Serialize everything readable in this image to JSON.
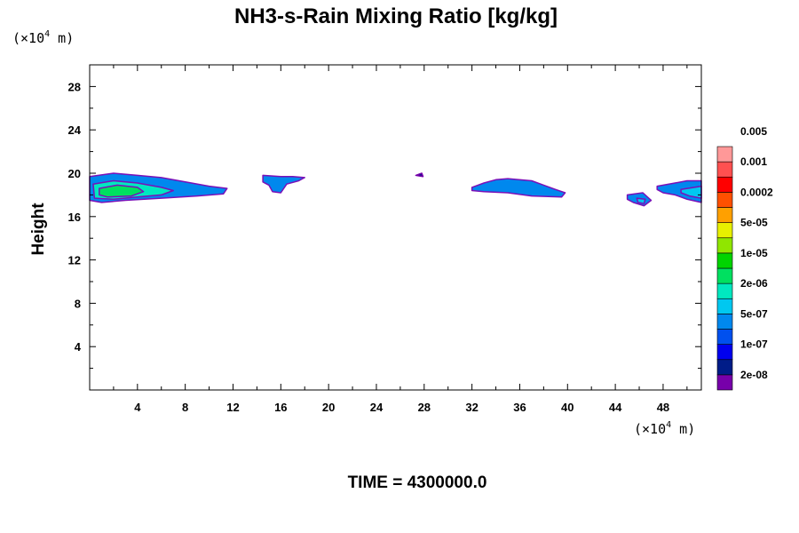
{
  "chart_data": {
    "type": "heatmap",
    "title": "NH3-s-Rain Mixing Ratio [kg/kg]",
    "ylabel": "Height",
    "y_unit": {
      "prefix": "(×10",
      "exp": "4",
      "suffix": " m)"
    },
    "x_unit": {
      "prefix": "(×10",
      "exp": "4",
      "suffix": " m)"
    },
    "xlim": [
      0,
      51.2
    ],
    "ylim": [
      0,
      30
    ],
    "xticks": [
      4,
      8,
      12,
      16,
      20,
      24,
      28,
      32,
      36,
      40,
      44,
      48
    ],
    "yticks": [
      4,
      8,
      12,
      16,
      20,
      24,
      28
    ],
    "time_label": "TIME = 4300000.0",
    "colorbar": {
      "colors": [
        "#7700aa",
        "#001c88",
        "#0000ee",
        "#0050ee",
        "#0088ee",
        "#00c8f0",
        "#00e8c0",
        "#00e060",
        "#00d400",
        "#90e600",
        "#e8f000",
        "#ffa000",
        "#ff5000",
        "#ff0000",
        "#ff5050",
        "#ff9898"
      ],
      "labels": [
        "2e-08",
        "1e-07",
        "5e-07",
        "2e-06",
        "1e-05",
        "5e-05",
        "0.0002",
        "0.001",
        "0.005"
      ]
    },
    "regions": [
      {
        "level": 4,
        "points": [
          [
            0,
            19.7
          ],
          [
            2,
            20.0
          ],
          [
            4,
            19.8
          ],
          [
            6,
            19.6
          ],
          [
            8,
            19.2
          ],
          [
            10,
            18.8
          ],
          [
            11.5,
            18.6
          ],
          [
            11.2,
            18.1
          ],
          [
            9,
            17.9
          ],
          [
            6,
            17.7
          ],
          [
            3,
            17.5
          ],
          [
            1,
            17.3
          ],
          [
            0,
            17.5
          ]
        ]
      },
      {
        "level": 6,
        "points": [
          [
            0.3,
            19.0
          ],
          [
            2,
            19.3
          ],
          [
            4,
            19.1
          ],
          [
            6,
            18.7
          ],
          [
            7,
            18.4
          ],
          [
            6,
            18.0
          ],
          [
            4,
            17.8
          ],
          [
            2,
            17.6
          ],
          [
            0.4,
            17.7
          ]
        ]
      },
      {
        "level": 7,
        "points": [
          [
            0.8,
            18.6
          ],
          [
            2.3,
            18.9
          ],
          [
            4,
            18.7
          ],
          [
            4.5,
            18.3
          ],
          [
            3.5,
            17.9
          ],
          [
            1.5,
            17.8
          ],
          [
            0.8,
            18.0
          ]
        ]
      },
      {
        "level": 4,
        "points": [
          [
            14.5,
            19.8
          ],
          [
            16,
            19.7
          ],
          [
            17,
            19.7
          ],
          [
            18,
            19.6
          ],
          [
            17.5,
            19.3
          ],
          [
            16.5,
            19.0
          ],
          [
            16,
            18.2
          ],
          [
            15.3,
            18.3
          ],
          [
            15,
            18.9
          ],
          [
            14.5,
            19.2
          ]
        ]
      },
      {
        "level": 1,
        "points": [
          [
            27.3,
            19.8
          ],
          [
            27.8,
            20.0
          ],
          [
            27.9,
            19.7
          ]
        ]
      },
      {
        "level": 4,
        "points": [
          [
            32,
            18.7
          ],
          [
            33,
            19.1
          ],
          [
            34,
            19.4
          ],
          [
            35,
            19.5
          ],
          [
            37,
            19.3
          ],
          [
            38,
            18.9
          ],
          [
            39,
            18.5
          ],
          [
            39.8,
            18.2
          ],
          [
            39.5,
            17.8
          ],
          [
            37,
            17.9
          ],
          [
            35,
            18.2
          ],
          [
            33,
            18.3
          ],
          [
            32,
            18.4
          ]
        ]
      },
      {
        "level": 4,
        "points": [
          [
            45,
            18.0
          ],
          [
            46.3,
            18.2
          ],
          [
            47,
            17.5
          ],
          [
            46.4,
            17.0
          ],
          [
            45.5,
            17.3
          ],
          [
            45,
            17.6
          ]
        ]
      },
      {
        "level": 5,
        "points": [
          [
            45.8,
            17.7
          ],
          [
            46.5,
            17.6
          ],
          [
            46.4,
            17.2
          ],
          [
            45.9,
            17.3
          ]
        ]
      },
      {
        "level": 4,
        "points": [
          [
            47.5,
            18.8
          ],
          [
            49,
            19.1
          ],
          [
            50,
            19.3
          ],
          [
            51.2,
            19.3
          ],
          [
            51.2,
            17.3
          ],
          [
            50,
            17.6
          ],
          [
            49,
            18.0
          ],
          [
            48,
            18.2
          ],
          [
            47.5,
            18.5
          ]
        ]
      },
      {
        "level": 5,
        "points": [
          [
            49.5,
            18.5
          ],
          [
            51.2,
            18.8
          ],
          [
            51.2,
            17.7
          ],
          [
            50.2,
            17.9
          ],
          [
            49.5,
            18.2
          ]
        ]
      }
    ]
  }
}
